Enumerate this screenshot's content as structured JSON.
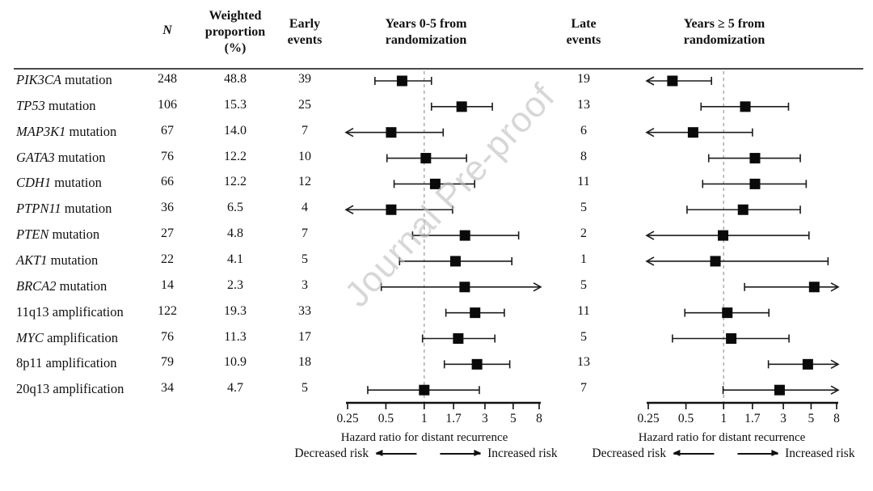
{
  "watermark": "Journal Pre-proof",
  "headers": {
    "n": "N",
    "weighted_l1": "Weighted",
    "weighted_l2": "proportion",
    "weighted_l3": "(%)",
    "early_l1": "Early",
    "early_l2": "events",
    "late_l1": "Late",
    "late_l2": "events",
    "period_early_l1": "Years 0-5 from",
    "period_early_l2": "randomization",
    "period_late_l1": "Years ≥ 5 from",
    "period_late_l2": "randomization"
  },
  "colors": {
    "text": "#111111",
    "marker": "#0a0a0a",
    "ci_line": "#1c1c1c",
    "axis": "#111111",
    "ref_dash": "#9a9a9a",
    "separator": "#4a4a4a",
    "watermark": "#bdbdbd"
  },
  "chart_data": {
    "type": "forest",
    "scale": "log",
    "axis": {
      "ticks": [
        "0.25",
        "0.5",
        "1",
        "1.7",
        "3",
        "5",
        "8"
      ],
      "tick_values": [
        0.25,
        0.5,
        1,
        1.7,
        3,
        5,
        8
      ],
      "min": 0.25,
      "max": 8,
      "reference": 1,
      "xlabel": "Hazard ratio for distant recurrence",
      "decreased_label": "Decreased risk",
      "increased_label": "Increased risk"
    },
    "panels": [
      {
        "id": "early",
        "title": "Years 0-5 from randomization",
        "events_column": "Early events"
      },
      {
        "id": "late",
        "title": "Years ≥ 5 from randomization",
        "events_column": "Late events"
      }
    ],
    "rows": [
      {
        "gene": "PIK3CA",
        "suffix": "mutation",
        "gene_italic": true,
        "n": "248",
        "weighted_pct": "48.8",
        "early_events": "39",
        "late_events": "19",
        "early": {
          "hr": 0.67,
          "lo": 0.41,
          "hi": 1.14
        },
        "late": {
          "hr": 0.39,
          "lo": 0.25,
          "lo_arrow": true,
          "hi": 0.8
        }
      },
      {
        "gene": "TP53",
        "suffix": "mutation",
        "gene_italic": true,
        "n": "106",
        "weighted_pct": "15.3",
        "early_events": "25",
        "late_events": "13",
        "early": {
          "hr": 1.97,
          "lo": 1.14,
          "hi": 3.43
        },
        "late": {
          "hr": 1.49,
          "lo": 0.66,
          "hi": 3.3
        }
      },
      {
        "gene": "MAP3K1",
        "suffix": "mutation",
        "gene_italic": true,
        "n": "67",
        "weighted_pct": "14.0",
        "early_events": "7",
        "late_events": "6",
        "early": {
          "hr": 0.55,
          "lo": 0.25,
          "lo_arrow": true,
          "hi": 1.41
        },
        "late": {
          "hr": 0.57,
          "lo": 0.25,
          "lo_arrow": true,
          "hi": 1.7
        }
      },
      {
        "gene": "GATA3",
        "suffix": "mutation",
        "gene_italic": true,
        "n": "76",
        "weighted_pct": "12.2",
        "early_events": "10",
        "late_events": "8",
        "early": {
          "hr": 1.03,
          "lo": 0.51,
          "hi": 2.15
        },
        "late": {
          "hr": 1.78,
          "lo": 0.76,
          "hi": 4.1
        }
      },
      {
        "gene": "CDH1",
        "suffix": "mutation",
        "gene_italic": true,
        "n": "66",
        "weighted_pct": "12.2",
        "early_events": "12",
        "late_events": "11",
        "early": {
          "hr": 1.22,
          "lo": 0.58,
          "hi": 2.49
        },
        "late": {
          "hr": 1.78,
          "lo": 0.68,
          "hi": 4.57
        }
      },
      {
        "gene": "PTPN11",
        "suffix": "mutation",
        "gene_italic": true,
        "n": "36",
        "weighted_pct": "6.5",
        "early_events": "4",
        "late_events": "5",
        "early": {
          "hr": 0.55,
          "lo": 0.25,
          "lo_arrow": true,
          "hi": 1.67
        },
        "late": {
          "hr": 1.43,
          "lo": 0.51,
          "hi": 4.1
        }
      },
      {
        "gene": "PTEN",
        "suffix": "mutation",
        "gene_italic": true,
        "n": "27",
        "weighted_pct": "4.8",
        "early_events": "7",
        "late_events": "2",
        "early": {
          "hr": 2.09,
          "lo": 0.81,
          "hi": 5.52
        },
        "late": {
          "hr": 0.99,
          "lo": 0.25,
          "lo_arrow": true,
          "hi": 4.81
        }
      },
      {
        "gene": "AKT1",
        "suffix": "mutation",
        "gene_italic": true,
        "n": "22",
        "weighted_pct": "4.1",
        "early_events": "5",
        "late_events": "1",
        "early": {
          "hr": 1.76,
          "lo": 0.64,
          "hi": 4.88
        },
        "late": {
          "hr": 0.86,
          "lo": 0.25,
          "lo_arrow": true,
          "hi": 6.83
        }
      },
      {
        "gene": "BRCA2",
        "suffix": "mutation",
        "gene_italic": true,
        "n": "14",
        "weighted_pct": "2.3",
        "early_events": "3",
        "late_events": "5",
        "early": {
          "hr": 2.08,
          "lo": 0.46,
          "hi": 8,
          "hi_arrow": true
        },
        "late": {
          "hr": 5.3,
          "lo": 1.47,
          "hi": 8,
          "hi_arrow": true
        }
      },
      {
        "gene": "11q13",
        "suffix": "amplification",
        "gene_italic": false,
        "n": "122",
        "weighted_pct": "19.3",
        "early_events": "33",
        "late_events": "11",
        "early": {
          "hr": 2.51,
          "lo": 1.48,
          "hi": 4.26
        },
        "late": {
          "hr": 1.07,
          "lo": 0.49,
          "hi": 2.3
        }
      },
      {
        "gene": "MYC",
        "suffix": "amplification",
        "gene_italic": true,
        "n": "76",
        "weighted_pct": "11.3",
        "early_events": "17",
        "late_events": "5",
        "early": {
          "hr": 1.85,
          "lo": 0.97,
          "hi": 3.59
        },
        "late": {
          "hr": 1.15,
          "lo": 0.39,
          "hi": 3.33
        }
      },
      {
        "gene": "8p11",
        "suffix": "amplification",
        "gene_italic": false,
        "n": "79",
        "weighted_pct": "10.9",
        "early_events": "18",
        "late_events": "13",
        "early": {
          "hr": 2.6,
          "lo": 1.44,
          "hi": 4.7
        },
        "late": {
          "hr": 4.71,
          "lo": 2.28,
          "hi": 8,
          "hi_arrow": true
        }
      },
      {
        "gene": "20q13",
        "suffix": "amplification",
        "gene_italic": false,
        "n": "34",
        "weighted_pct": "4.7",
        "early_events": "5",
        "late_events": "7",
        "early": {
          "hr": 1.0,
          "lo": 0.36,
          "hi": 2.71
        },
        "late": {
          "hr": 2.8,
          "lo": 0.99,
          "hi": 8,
          "hi_arrow": true
        }
      }
    ]
  }
}
